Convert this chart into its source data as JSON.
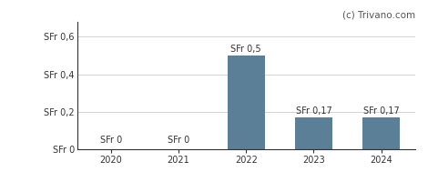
{
  "categories": [
    "2020",
    "2021",
    "2022",
    "2023",
    "2024"
  ],
  "values": [
    0,
    0,
    0.5,
    0.17,
    0.17
  ],
  "bar_color": "#5a7f96",
  "bar_labels": [
    "SFr 0",
    "SFr 0",
    "SFr 0,5",
    "SFr 0,17",
    "SFr 0,17"
  ],
  "yticks": [
    0,
    0.2,
    0.4,
    0.6
  ],
  "ytick_labels": [
    "SFr 0",
    "SFr 0,2",
    "SFr 0,4",
    "SFr 0,6"
  ],
  "ylim": [
    0,
    0.68
  ],
  "watermark": "(c) Trivano.com",
  "bar_width": 0.55,
  "label_fontsize": 7.0,
  "tick_fontsize": 7.0,
  "watermark_fontsize": 7.5,
  "grid_color": "#cccccc",
  "background_color": "#ffffff",
  "spine_color": "#333333",
  "text_color": "#333333"
}
